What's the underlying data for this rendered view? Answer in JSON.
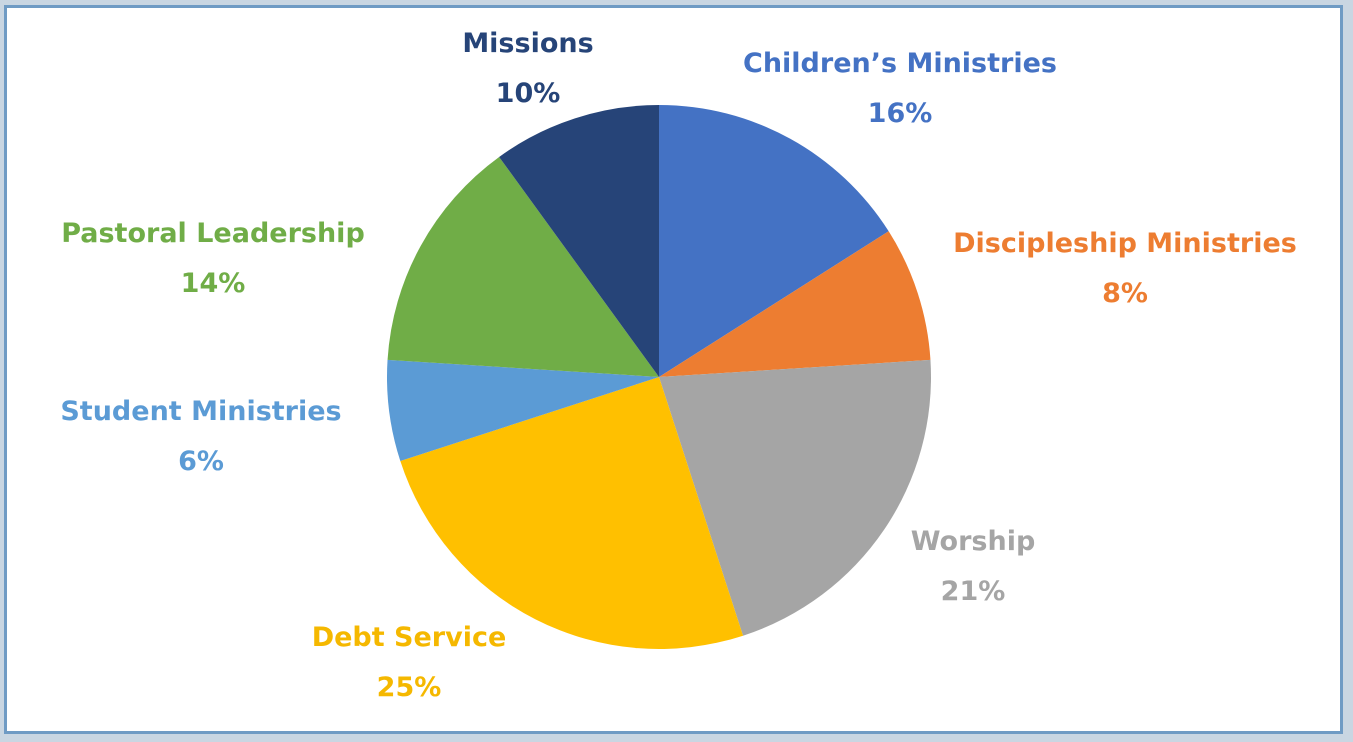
{
  "chart_data": {
    "type": "pie",
    "title": "",
    "start_angle_deg": 0,
    "direction": "clockwise",
    "slices": [
      {
        "label": "Children’s Ministries",
        "value": 16,
        "value_label": "16%",
        "color": "#4472c4",
        "label_color": "#4472c4"
      },
      {
        "label": "Discipleship Ministries",
        "value": 8,
        "value_label": "8%",
        "color": "#ed7d31",
        "label_color": "#ed7d31"
      },
      {
        "label": "Worship",
        "value": 21,
        "value_label": "21%",
        "color": "#a5a5a5",
        "label_color": "#a5a5a5"
      },
      {
        "label": "Debt Service",
        "value": 25,
        "value_label": "25%",
        "color": "#ffc000",
        "label_color": "#f5b800"
      },
      {
        "label": "Student Ministries",
        "value": 6,
        "value_label": "6%",
        "color": "#5b9bd5",
        "label_color": "#5b9bd5"
      },
      {
        "label": "Pastoral Leadership",
        "value": 14,
        "value_label": "14%",
        "color": "#70ad47",
        "label_color": "#70ad47"
      },
      {
        "label": "Missions",
        "value": 10,
        "value_label": "10%",
        "color": "#264478",
        "label_color": "#264478"
      }
    ]
  }
}
